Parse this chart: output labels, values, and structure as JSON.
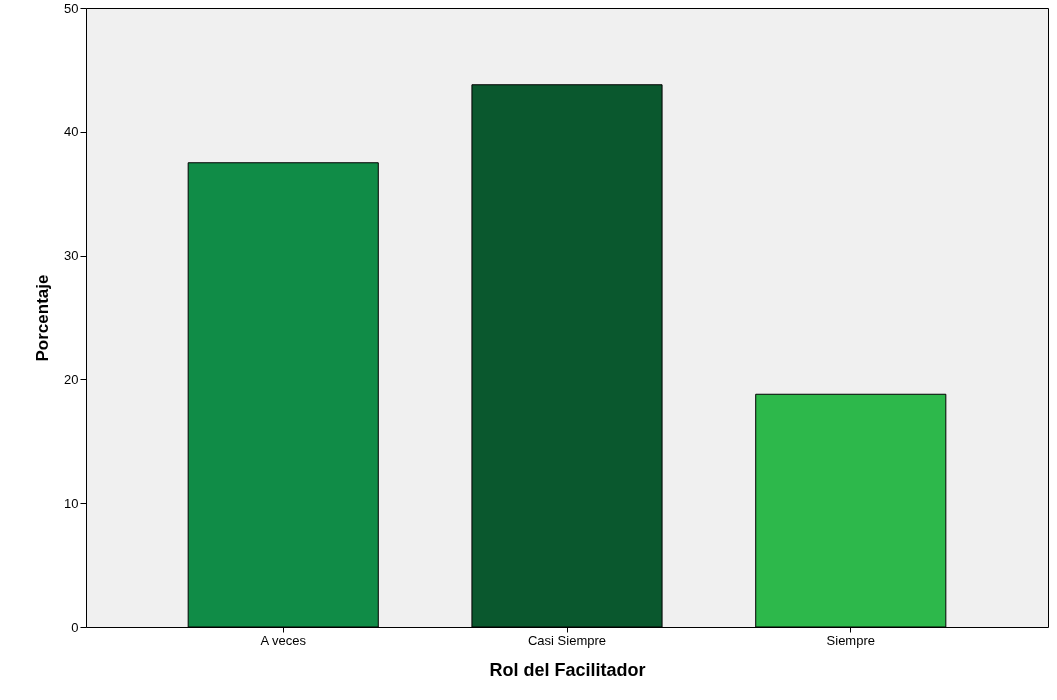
{
  "chart_data": {
    "type": "bar",
    "xlabel": "Rol del Facilitador",
    "ylabel": "Porcentaje",
    "categories": [
      "A veces",
      "Casi Siempre",
      "Siempre"
    ],
    "values": [
      37.5,
      43.8,
      18.8
    ],
    "colors": [
      "#108c47",
      "#0a582e",
      "#2db84b"
    ],
    "ylim": [
      0,
      50
    ],
    "yticks": [
      0,
      10,
      20,
      30,
      40,
      50
    ],
    "grid": false
  }
}
